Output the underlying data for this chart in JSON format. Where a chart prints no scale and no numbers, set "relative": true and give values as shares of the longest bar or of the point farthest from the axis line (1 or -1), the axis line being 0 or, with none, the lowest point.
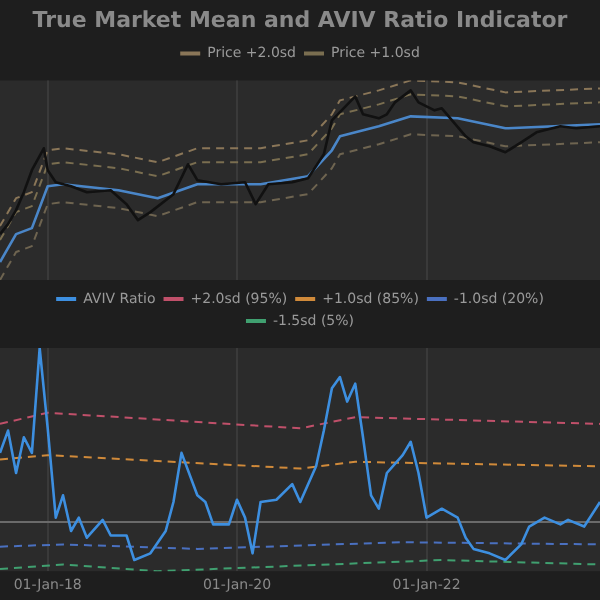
{
  "chart_data": [
    {
      "type": "line",
      "title": "True Market Mean and AVIV Ratio Indicator",
      "relative": true,
      "xlim": [
        "2017-07",
        "2023-11"
      ],
      "xticks": [
        {
          "value": "2018-01-01",
          "label": null
        },
        {
          "value": "2020-01-01",
          "label": null
        },
        {
          "value": "2022-01-01",
          "label": null
        }
      ],
      "tick_labels": false,
      "grid": "x",
      "legend": "top",
      "marker": "none",
      "series": [
        {
          "color": "#111111",
          "x": [
            "2017-07",
            "2017-08",
            "2017-09",
            "2017-10",
            "2017-11",
            "2017-12-17",
            "2018-01",
            "2018-02",
            "2018-04",
            "2018-06",
            "2018-09",
            "2018-11",
            "2018-12-15",
            "2019-02",
            "2019-05",
            "2019-06-26",
            "2019-08",
            "2019-11",
            "2020-02",
            "2020-03-13",
            "2020-05",
            "2020-08",
            "2020-10",
            "2020-12",
            "2021-01",
            "2021-04",
            "2021-05",
            "2021-07",
            "2021-08",
            "2021-09",
            "2021-11",
            "2021-12",
            "2022-02",
            "2022-03",
            "2022-06",
            "2022-07",
            "2022-09",
            "2022-11",
            "2023-01",
            "2023-03",
            "2023-06",
            "2023-08",
            "2023-11"
          ],
          "values": [
            0.23,
            0.28,
            0.35,
            0.44,
            0.55,
            0.66,
            0.55,
            0.49,
            0.47,
            0.44,
            0.45,
            0.38,
            0.3,
            0.34,
            0.43,
            0.58,
            0.5,
            0.48,
            0.49,
            0.38,
            0.48,
            0.49,
            0.51,
            0.63,
            0.8,
            0.92,
            0.83,
            0.81,
            0.83,
            0.89,
            0.95,
            0.89,
            0.85,
            0.86,
            0.72,
            0.69,
            0.67,
            0.64,
            0.69,
            0.74,
            0.77,
            0.76,
            0.77
          ]
        },
        {
          "color": "#4a86c8",
          "x": [
            "2017-07",
            "2017-09",
            "2017-11",
            "2018-01",
            "2018-03",
            "2018-10",
            "2019-03",
            "2019-08",
            "2020-04",
            "2020-10",
            "2021-01",
            "2021-02",
            "2021-07",
            "2021-11",
            "2022-05",
            "2022-11",
            "2023-11"
          ],
          "values": [
            0.09,
            0.23,
            0.26,
            0.47,
            0.48,
            0.45,
            0.41,
            0.48,
            0.48,
            0.52,
            0.65,
            0.72,
            0.77,
            0.82,
            0.81,
            0.76,
            0.78
          ]
        },
        {
          "name": "Price +2.0sd",
          "color": "#8a7658",
          "line_style": "dashed",
          "x": [
            "2017-07",
            "2017-09",
            "2017-11",
            "2018-01",
            "2018-03",
            "2018-10",
            "2019-03",
            "2019-08",
            "2020-04",
            "2020-10",
            "2021-01",
            "2021-02",
            "2021-07",
            "2021-11",
            "2022-05",
            "2022-11",
            "2023-11"
          ],
          "values": [
            0.27,
            0.41,
            0.44,
            0.65,
            0.66,
            0.63,
            0.59,
            0.66,
            0.66,
            0.7,
            0.83,
            0.9,
            0.95,
            1.0,
            0.99,
            0.94,
            0.96
          ]
        },
        {
          "name": "Price +1.0sd",
          "color": "#7a6e50",
          "line_style": "dashed",
          "x": [
            "2017-07",
            "2017-09",
            "2017-11",
            "2018-01",
            "2018-03",
            "2018-10",
            "2019-03",
            "2019-08",
            "2020-04",
            "2020-10",
            "2021-01",
            "2021-02",
            "2021-07",
            "2021-11",
            "2022-05",
            "2022-11",
            "2023-11"
          ],
          "values": [
            0.2,
            0.34,
            0.37,
            0.58,
            0.59,
            0.56,
            0.52,
            0.59,
            0.59,
            0.63,
            0.76,
            0.83,
            0.88,
            0.93,
            0.92,
            0.87,
            0.89
          ]
        },
        {
          "color": "#6e6450",
          "line_style": "dashed",
          "x": [
            "2017-07",
            "2017-09",
            "2017-11",
            "2018-01",
            "2018-03",
            "2018-10",
            "2019-03",
            "2019-08",
            "2020-04",
            "2020-10",
            "2021-01",
            "2021-02",
            "2021-07",
            "2021-11",
            "2022-05",
            "2022-11",
            "2023-11"
          ],
          "values": [
            0.0,
            0.14,
            0.17,
            0.38,
            0.39,
            0.36,
            0.32,
            0.39,
            0.39,
            0.43,
            0.56,
            0.63,
            0.68,
            0.73,
            0.72,
            0.67,
            0.69
          ]
        }
      ]
    },
    {
      "type": "line",
      "relative": true,
      "xlim": [
        "2017-07",
        "2023-11"
      ],
      "xticks": [
        {
          "value": "2018-01-01",
          "label": "01-Jan-18"
        },
        {
          "value": "2020-01-01",
          "label": "01-Jan-20"
        },
        {
          "value": "2022-01-01",
          "label": "01-Jan-22"
        }
      ],
      "tick_labels": "x",
      "grid": "x",
      "legend": "top",
      "marker": "none",
      "ref_lines": [
        {
          "axis": "y",
          "value": 0.22,
          "color": "#6a6a6a"
        }
      ],
      "series": [
        {
          "name": "AVIV Ratio",
          "color": "#3d8fe0",
          "x": [
            "2017-07",
            "2017-08",
            "2017-09",
            "2017-10",
            "2017-11",
            "2017-12",
            "2018-01",
            "2018-02",
            "2018-03",
            "2018-04",
            "2018-05",
            "2018-06",
            "2018-08",
            "2018-09",
            "2018-11",
            "2018-12",
            "2019-02",
            "2019-04",
            "2019-05",
            "2019-06",
            "2019-08",
            "2019-09",
            "2019-10",
            "2019-12",
            "2020-01",
            "2020-02",
            "2020-03",
            "2020-04",
            "2020-06",
            "2020-08",
            "2020-09",
            "2020-11",
            "2020-12",
            "2021-01",
            "2021-02",
            "2021-03",
            "2021-04",
            "2021-05",
            "2021-06",
            "2021-07",
            "2021-08",
            "2021-10",
            "2021-11",
            "2021-12",
            "2022-01",
            "2022-03",
            "2022-05",
            "2022-06",
            "2022-07",
            "2022-09",
            "2022-11",
            "2023-01",
            "2023-02",
            "2023-04",
            "2023-06",
            "2023-07",
            "2023-09",
            "2023-11"
          ],
          "values": [
            0.53,
            0.63,
            0.44,
            0.6,
            0.53,
            1.0,
            0.64,
            0.24,
            0.34,
            0.18,
            0.24,
            0.15,
            0.23,
            0.16,
            0.16,
            0.05,
            0.08,
            0.18,
            0.31,
            0.53,
            0.34,
            0.31,
            0.21,
            0.21,
            0.32,
            0.24,
            0.08,
            0.31,
            0.32,
            0.39,
            0.31,
            0.47,
            0.63,
            0.82,
            0.87,
            0.76,
            0.84,
            0.6,
            0.34,
            0.28,
            0.44,
            0.52,
            0.58,
            0.44,
            0.24,
            0.28,
            0.24,
            0.15,
            0.1,
            0.08,
            0.05,
            0.12,
            0.2,
            0.24,
            0.21,
            0.23,
            0.2,
            0.31
          ]
        },
        {
          "name": "+2.0sd (95%)",
          "color": "#c0506a",
          "line_style": "dashed",
          "x": [
            "2017-07",
            "2018-01",
            "2020-09",
            "2021-04",
            "2023-11"
          ],
          "values": [
            0.66,
            0.71,
            0.64,
            0.69,
            0.66
          ]
        },
        {
          "name": "+1.0sd (85%)",
          "color": "#d08a3a",
          "line_style": "dashed",
          "x": [
            "2017-07",
            "2018-01",
            "2020-09",
            "2021-04",
            "2023-11"
          ],
          "values": [
            0.5,
            0.52,
            0.46,
            0.49,
            0.47
          ]
        },
        {
          "name": "-1.0sd (20%)",
          "color": "#4a70c0",
          "line_style": "dashed",
          "x": [
            "2017-07",
            "2018-03",
            "2019-08",
            "2021-10",
            "2023-11"
          ],
          "values": [
            0.11,
            0.12,
            0.1,
            0.13,
            0.12
          ]
        },
        {
          "name": "-1.5sd (5%)",
          "color": "#40a070",
          "line_style": "dashed",
          "x": [
            "2017-07",
            "2018-03",
            "2019-03",
            "2022-03",
            "2023-11"
          ],
          "values": [
            0.01,
            0.03,
            0.0,
            0.05,
            0.03
          ]
        }
      ]
    }
  ]
}
